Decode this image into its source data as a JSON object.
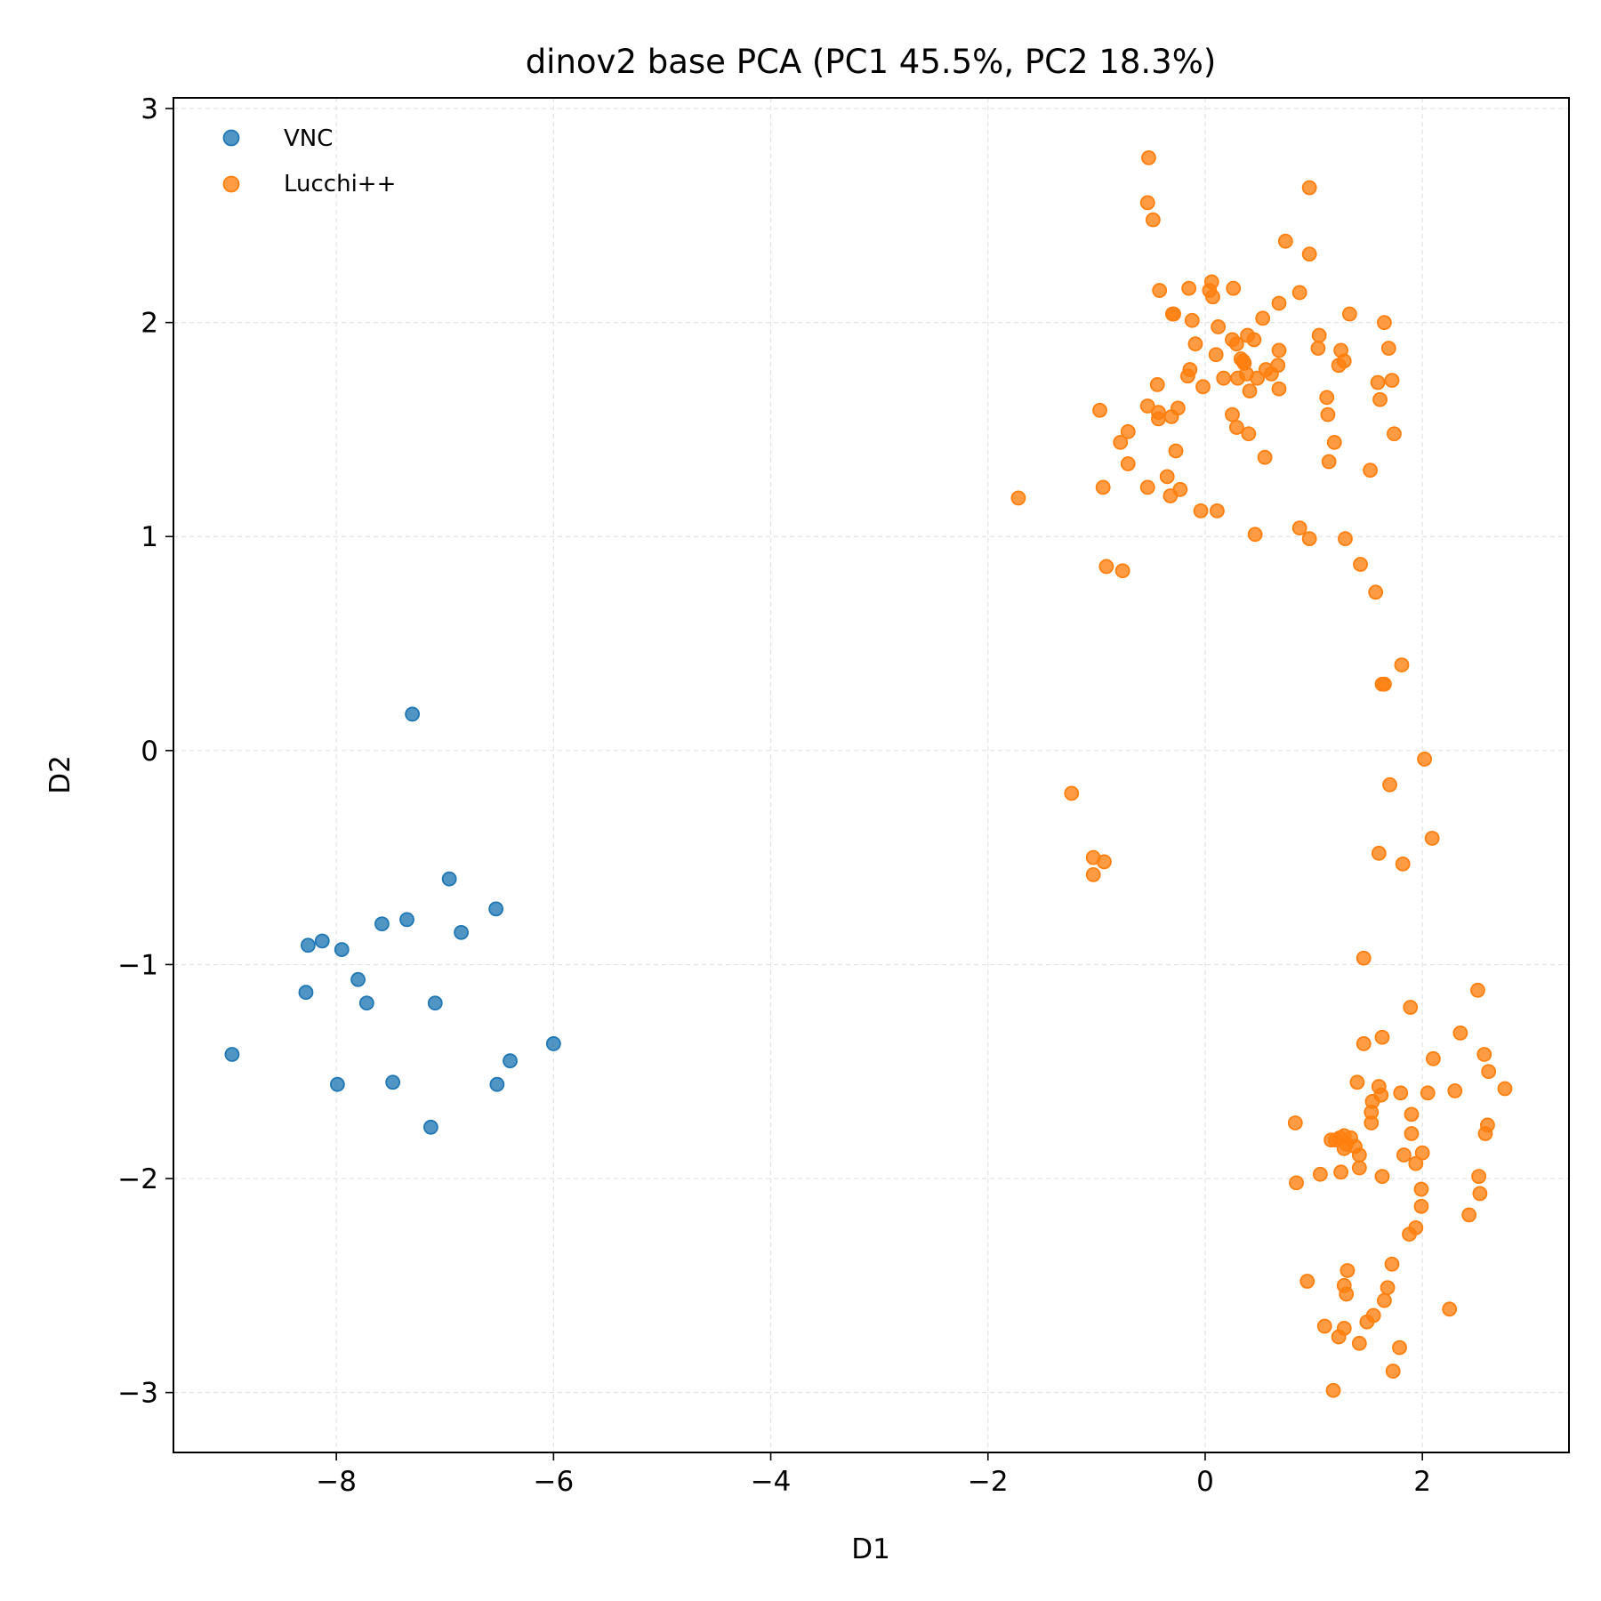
{
  "chart_data": {
    "type": "scatter",
    "title": "dinov2 base PCA (PC1 45.5%, PC2 18.3%)",
    "xlabel": "D1",
    "ylabel": "D2",
    "xlim": [
      -9.5,
      3.35
    ],
    "ylim": [
      -3.28,
      3.05
    ],
    "xticks": [
      -8,
      -6,
      -4,
      -2,
      0,
      2
    ],
    "yticks": [
      -3,
      -2,
      -1,
      0,
      1,
      2,
      3
    ],
    "xtick_labels": [
      "−8",
      "−6",
      "−4",
      "−2",
      "0",
      "2"
    ],
    "ytick_labels": [
      "−3",
      "−2",
      "−1",
      "0",
      "1",
      "2",
      "3"
    ],
    "grid": true,
    "legend_position": "top-left",
    "series": [
      {
        "name": "VNC",
        "color": "#1f77b4",
        "points": [
          [
            -7.3,
            0.17
          ],
          [
            -6.96,
            -0.6
          ],
          [
            -6.53,
            -0.74
          ],
          [
            -7.35,
            -0.79
          ],
          [
            -7.58,
            -0.81
          ],
          [
            -6.85,
            -0.85
          ],
          [
            -8.13,
            -0.89
          ],
          [
            -8.26,
            -0.91
          ],
          [
            -7.95,
            -0.93
          ],
          [
            -7.8,
            -1.07
          ],
          [
            -8.28,
            -1.13
          ],
          [
            -7.72,
            -1.18
          ],
          [
            -7.09,
            -1.18
          ],
          [
            -8.96,
            -1.42
          ],
          [
            -6.0,
            -1.37
          ],
          [
            -6.4,
            -1.45
          ],
          [
            -7.99,
            -1.56
          ],
          [
            -7.48,
            -1.55
          ],
          [
            -6.52,
            -1.56
          ],
          [
            -7.13,
            -1.76
          ]
        ]
      },
      {
        "name": "Lucchi++",
        "color": "#ff7f0e",
        "points": [
          [
            -0.52,
            2.77
          ],
          [
            0.96,
            2.63
          ],
          [
            -0.53,
            2.56
          ],
          [
            -0.48,
            2.48
          ],
          [
            0.74,
            2.38
          ],
          [
            0.96,
            2.32
          ],
          [
            0.06,
            2.19
          ],
          [
            0.04,
            2.15
          ],
          [
            -0.15,
            2.16
          ],
          [
            0.26,
            2.16
          ],
          [
            -0.42,
            2.15
          ],
          [
            0.07,
            2.12
          ],
          [
            0.87,
            2.14
          ],
          [
            0.68,
            2.09
          ],
          [
            -0.29,
            2.04
          ],
          [
            -0.3,
            2.04
          ],
          [
            1.33,
            2.04
          ],
          [
            0.53,
            2.02
          ],
          [
            -0.12,
            2.01
          ],
          [
            1.65,
            2.0
          ],
          [
            0.12,
            1.98
          ],
          [
            0.39,
            1.94
          ],
          [
            1.05,
            1.94
          ],
          [
            0.25,
            1.92
          ],
          [
            0.45,
            1.92
          ],
          [
            -0.09,
            1.9
          ],
          [
            0.29,
            1.9
          ],
          [
            1.69,
            1.88
          ],
          [
            1.04,
            1.88
          ],
          [
            1.25,
            1.87
          ],
          [
            0.68,
            1.87
          ],
          [
            0.1,
            1.85
          ],
          [
            0.33,
            1.83
          ],
          [
            0.35,
            1.82
          ],
          [
            1.28,
            1.82
          ],
          [
            0.36,
            1.81
          ],
          [
            0.67,
            1.8
          ],
          [
            1.23,
            1.8
          ],
          [
            0.56,
            1.78
          ],
          [
            -0.14,
            1.78
          ],
          [
            0.38,
            1.76
          ],
          [
            0.61,
            1.76
          ],
          [
            -0.16,
            1.75
          ],
          [
            0.48,
            1.74
          ],
          [
            0.3,
            1.74
          ],
          [
            0.17,
            1.74
          ],
          [
            1.72,
            1.73
          ],
          [
            1.59,
            1.72
          ],
          [
            -0.44,
            1.71
          ],
          [
            -0.02,
            1.7
          ],
          [
            0.68,
            1.69
          ],
          [
            0.41,
            1.68
          ],
          [
            1.12,
            1.65
          ],
          [
            1.61,
            1.64
          ],
          [
            -0.25,
            1.6
          ],
          [
            -0.53,
            1.61
          ],
          [
            -0.97,
            1.59
          ],
          [
            -0.43,
            1.58
          ],
          [
            -0.31,
            1.56
          ],
          [
            0.25,
            1.57
          ],
          [
            1.13,
            1.57
          ],
          [
            -0.43,
            1.55
          ],
          [
            0.29,
            1.51
          ],
          [
            -0.71,
            1.49
          ],
          [
            1.74,
            1.48
          ],
          [
            0.4,
            1.48
          ],
          [
            -0.78,
            1.44
          ],
          [
            1.19,
            1.44
          ],
          [
            -0.27,
            1.4
          ],
          [
            0.55,
            1.37
          ],
          [
            1.14,
            1.35
          ],
          [
            -0.71,
            1.34
          ],
          [
            1.52,
            1.31
          ],
          [
            -0.35,
            1.28
          ],
          [
            -0.53,
            1.23
          ],
          [
            -0.94,
            1.23
          ],
          [
            -0.23,
            1.22
          ],
          [
            -0.32,
            1.19
          ],
          [
            -1.72,
            1.18
          ],
          [
            -0.04,
            1.12
          ],
          [
            0.11,
            1.12
          ],
          [
            0.87,
            1.04
          ],
          [
            0.46,
            1.01
          ],
          [
            0.96,
            0.99
          ],
          [
            1.29,
            0.99
          ],
          [
            1.43,
            0.87
          ],
          [
            -0.91,
            0.86
          ],
          [
            -0.76,
            0.84
          ],
          [
            1.57,
            0.74
          ],
          [
            1.81,
            0.4
          ],
          [
            1.63,
            0.31
          ],
          [
            1.65,
            0.31
          ],
          [
            2.02,
            -0.04
          ],
          [
            1.7,
            -0.16
          ],
          [
            -1.23,
            -0.2
          ],
          [
            2.09,
            -0.41
          ],
          [
            1.6,
            -0.48
          ],
          [
            -1.03,
            -0.5
          ],
          [
            -0.93,
            -0.52
          ],
          [
            1.82,
            -0.53
          ],
          [
            -1.03,
            -0.58
          ],
          [
            1.46,
            -0.97
          ],
          [
            2.51,
            -1.12
          ],
          [
            1.89,
            -1.2
          ],
          [
            2.35,
            -1.32
          ],
          [
            1.46,
            -1.37
          ],
          [
            1.63,
            -1.34
          ],
          [
            2.57,
            -1.42
          ],
          [
            2.1,
            -1.44
          ],
          [
            2.61,
            -1.5
          ],
          [
            1.4,
            -1.55
          ],
          [
            1.6,
            -1.57
          ],
          [
            2.76,
            -1.58
          ],
          [
            2.3,
            -1.59
          ],
          [
            1.8,
            -1.6
          ],
          [
            2.05,
            -1.6
          ],
          [
            1.62,
            -1.61
          ],
          [
            1.54,
            -1.64
          ],
          [
            1.53,
            -1.69
          ],
          [
            1.9,
            -1.7
          ],
          [
            1.53,
            -1.74
          ],
          [
            0.83,
            -1.74
          ],
          [
            2.6,
            -1.75
          ],
          [
            1.9,
            -1.79
          ],
          [
            2.58,
            -1.79
          ],
          [
            1.28,
            -1.8
          ],
          [
            1.24,
            -1.81
          ],
          [
            1.2,
            -1.82
          ],
          [
            1.34,
            -1.81
          ],
          [
            1.16,
            -1.82
          ],
          [
            1.3,
            -1.84
          ],
          [
            1.28,
            -1.86
          ],
          [
            1.38,
            -1.85
          ],
          [
            1.42,
            -1.89
          ],
          [
            1.83,
            -1.89
          ],
          [
            2.0,
            -1.88
          ],
          [
            1.94,
            -1.93
          ],
          [
            1.42,
            -1.95
          ],
          [
            1.06,
            -1.98
          ],
          [
            1.25,
            -1.97
          ],
          [
            1.63,
            -1.99
          ],
          [
            2.52,
            -1.99
          ],
          [
            0.84,
            -2.02
          ],
          [
            1.99,
            -2.05
          ],
          [
            2.53,
            -2.07
          ],
          [
            1.99,
            -2.13
          ],
          [
            2.43,
            -2.17
          ],
          [
            1.94,
            -2.23
          ],
          [
            1.88,
            -2.26
          ],
          [
            1.72,
            -2.4
          ],
          [
            0.94,
            -2.48
          ],
          [
            1.31,
            -2.43
          ],
          [
            1.28,
            -2.5
          ],
          [
            1.68,
            -2.51
          ],
          [
            1.3,
            -2.54
          ],
          [
            1.65,
            -2.57
          ],
          [
            2.25,
            -2.61
          ],
          [
            1.55,
            -2.64
          ],
          [
            1.49,
            -2.67
          ],
          [
            1.1,
            -2.69
          ],
          [
            1.28,
            -2.7
          ],
          [
            1.23,
            -2.74
          ],
          [
            1.42,
            -2.77
          ],
          [
            1.79,
            -2.79
          ],
          [
            1.73,
            -2.9
          ],
          [
            1.18,
            -2.99
          ]
        ]
      }
    ]
  }
}
